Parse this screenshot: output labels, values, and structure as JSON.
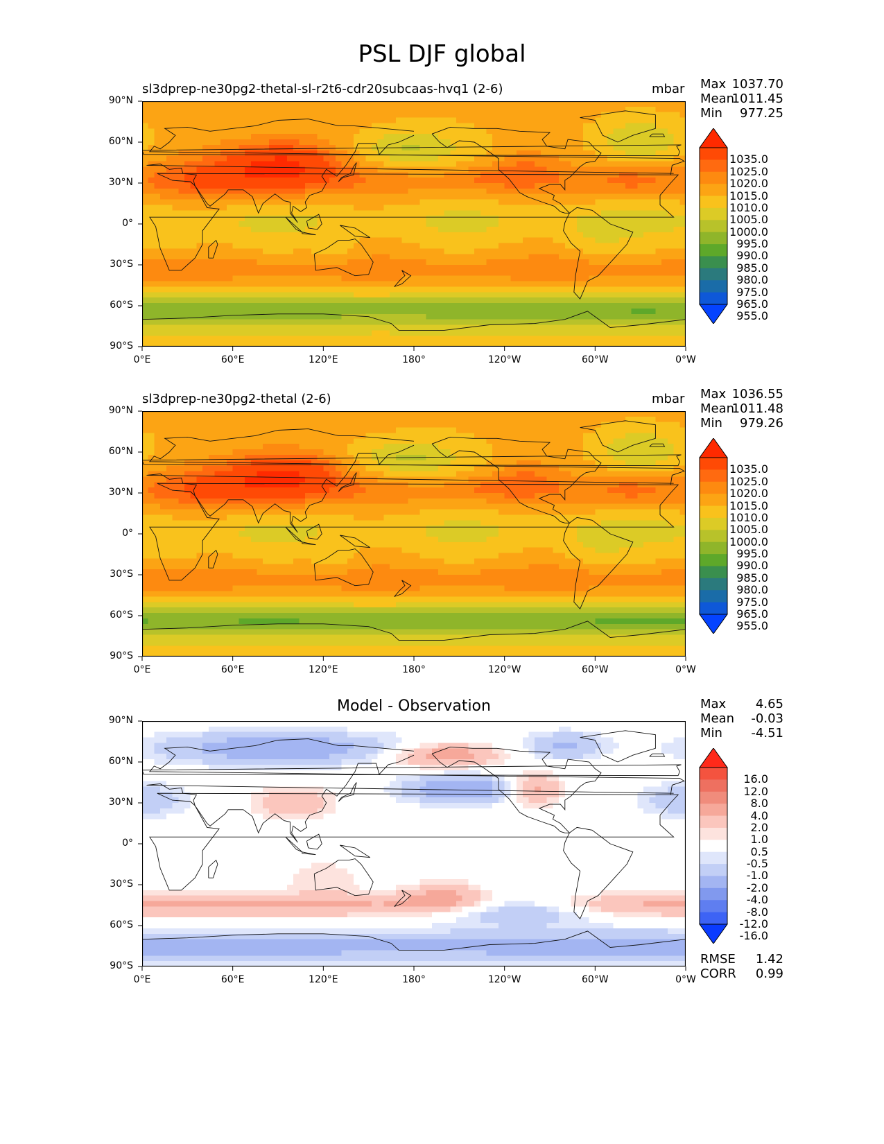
{
  "chart_data": [
    {
      "type": "heatmap",
      "panel": "test",
      "title": "sl3dprep-ne30pg2-thetal-sl-r2t6-cdr20subcaas-hvq1 (2-6)",
      "units": "mbar",
      "stats": {
        "max": "1037.70",
        "mean": "1011.45",
        "min": "977.25"
      },
      "colorbar": {
        "levels": [
          "1035.0",
          "1025.0",
          "1020.0",
          "1015.0",
          "1010.0",
          "1005.0",
          "1000.0",
          "995.0",
          "990.0",
          "985.0",
          "980.0",
          "975.0",
          "965.0",
          "955.0"
        ],
        "colors": [
          "#ff2a00",
          "#ff4a05",
          "#ff6a10",
          "#fd8a10",
          "#fca414",
          "#f9c21c",
          "#dccb26",
          "#b8c22a",
          "#8fb52a",
          "#5ea82a",
          "#3a8f4e",
          "#2b7a7d",
          "#1a6ca8",
          "#0e58d8",
          "#0443ff"
        ]
      },
      "field": "psl_model"
    },
    {
      "type": "heatmap",
      "panel": "reference",
      "title": "sl3dprep-ne30pg2-thetal (2-6)",
      "units": "mbar",
      "stats": {
        "max": "1036.55",
        "mean": "1011.48",
        "min": "979.26"
      },
      "colorbar": {
        "levels": [
          "1035.0",
          "1025.0",
          "1020.0",
          "1015.0",
          "1010.0",
          "1005.0",
          "1000.0",
          "995.0",
          "990.0",
          "985.0",
          "980.0",
          "975.0",
          "965.0",
          "955.0"
        ],
        "colors": [
          "#ff2a00",
          "#ff4a05",
          "#ff6a10",
          "#fd8a10",
          "#fca414",
          "#f9c21c",
          "#dccb26",
          "#b8c22a",
          "#8fb52a",
          "#5ea82a",
          "#3a8f4e",
          "#2b7a7d",
          "#1a6ca8",
          "#0e58d8",
          "#0443ff"
        ]
      },
      "field": "psl_ref"
    },
    {
      "type": "heatmap",
      "panel": "difference",
      "title": "Model - Observation",
      "units": "",
      "stats": {
        "max": "4.65",
        "mean": "-0.03",
        "min": "-4.51",
        "rmse": "1.42",
        "corr": "0.99"
      },
      "colorbar": {
        "levels": [
          "16.0",
          "12.0",
          "8.0",
          "4.0",
          "2.0",
          "1.0",
          "0.5",
          "-0.5",
          "-1.0",
          "-2.0",
          "-4.0",
          "-8.0",
          "-12.0",
          "-16.0"
        ],
        "colors": [
          "#ff2a1a",
          "#f4533f",
          "#ee7060",
          "#f08c7c",
          "#f6a89a",
          "#fbc6bd",
          "#fde3de",
          "#ffffff",
          "#dfe6fb",
          "#c2cff6",
          "#a3b5f2",
          "#8199ee",
          "#5f7ef0",
          "#3d63f5",
          "#0a3bff"
        ]
      },
      "field": "psl_diff"
    }
  ],
  "figure_title": "PSL DJF global",
  "stat_labels": {
    "max": "Max",
    "mean": "Mean",
    "min": "Min",
    "rmse": "RMSE",
    "corr": "CORR"
  },
  "axes": {
    "x_ticks": [
      "0°E",
      "60°E",
      "120°E",
      "180°",
      "120°W",
      "60°W",
      "0°W"
    ],
    "y_ticks": [
      "90°N",
      "60°N",
      "30°N",
      "0°",
      "30°S",
      "60°S",
      "90°S"
    ],
    "xlim": [
      0,
      360
    ],
    "ylim": [
      -90,
      90
    ]
  }
}
